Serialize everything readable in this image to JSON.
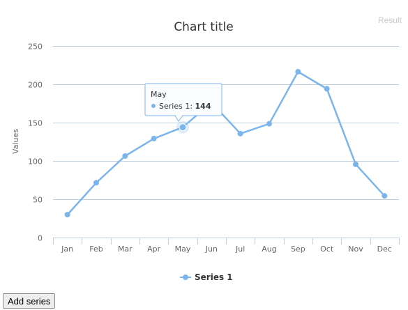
{
  "page": {
    "corner_label": "Result"
  },
  "button": {
    "add_series": "Add series"
  },
  "colors": {
    "series": "#7cb5ec",
    "grid": "#c0d0e0",
    "text": "#666666"
  },
  "chart_data": {
    "type": "line",
    "title": "Chart title",
    "ylabel": "Values",
    "xlabel": "",
    "categories": [
      "Jan",
      "Feb",
      "Mar",
      "Apr",
      "May",
      "Jun",
      "Jul",
      "Aug",
      "Sep",
      "Oct",
      "Nov",
      "Dec"
    ],
    "series": [
      {
        "name": "Series 1",
        "values": [
          29.9,
          71.5,
          106.4,
          129.2,
          144.0,
          176.0,
          135.6,
          148.5,
          216.4,
          194.1,
          95.6,
          54.4
        ]
      }
    ],
    "ylim": [
      0,
      250
    ],
    "yticks": [
      0,
      50,
      100,
      150,
      200,
      250
    ],
    "grid": true,
    "legend": "bottom-center",
    "tooltip": {
      "category": "May",
      "series": "Series 1",
      "value": "144"
    }
  }
}
